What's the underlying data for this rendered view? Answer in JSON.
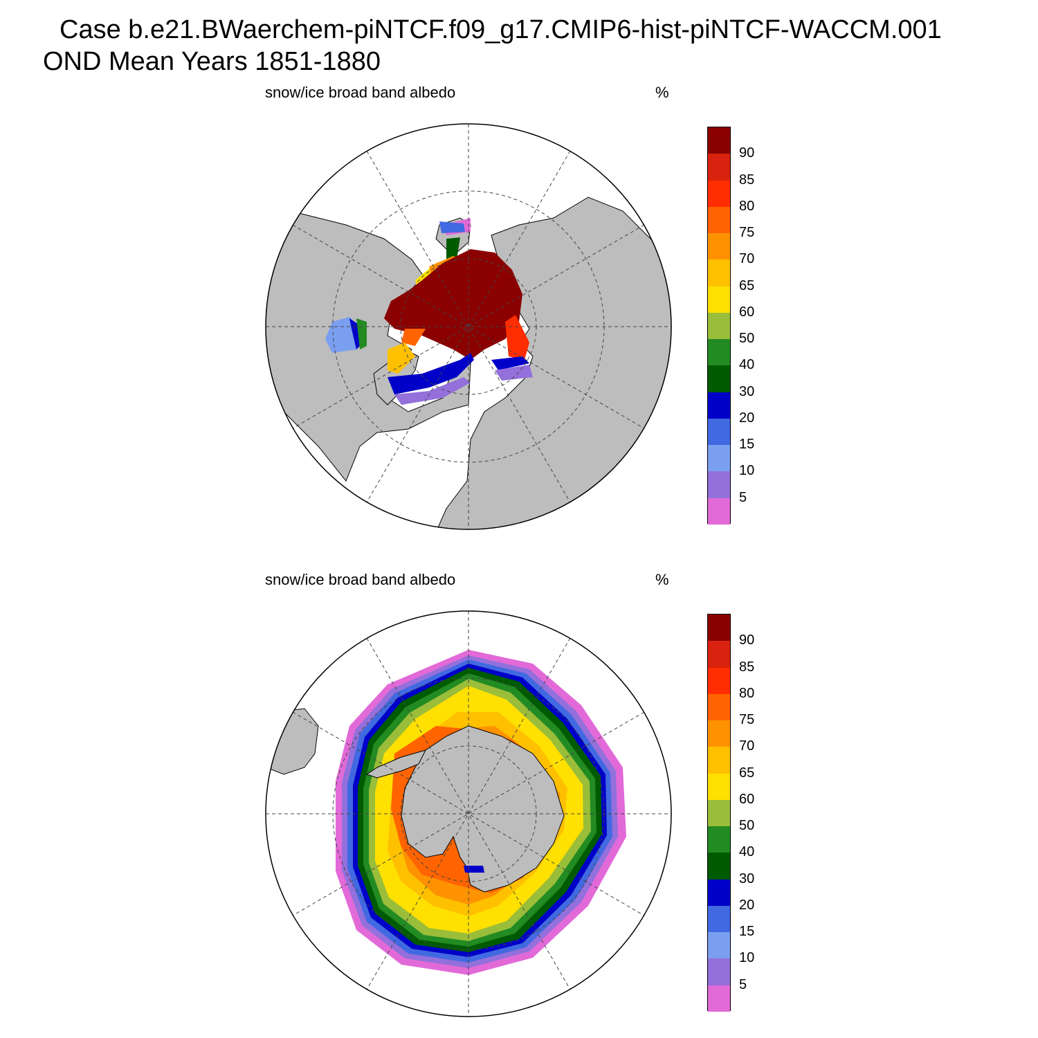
{
  "header": {
    "line1": "Case b.e21.BWaerchem-piNTCF.f09_g17.CMIP6-hist-piNTCF-WACCM.001",
    "line2": "OND Mean   Years 1851-1880"
  },
  "panels": [
    {
      "label": "snow/ice broad band albedo",
      "unit": "%",
      "hemisphere": "north"
    },
    {
      "label": "snow/ice broad band albedo",
      "unit": "%",
      "hemisphere": "south"
    }
  ],
  "colors": {
    "land": "#bdbdbd",
    "ocean": "#ffffff",
    "bands": [
      "#e26ad8",
      "#9370db",
      "#7b9ff0",
      "#4169e1",
      "#0000c8",
      "#005a00",
      "#228b22",
      "#9abd3a",
      "#ffe000",
      "#ffc000",
      "#ff9200",
      "#ff6400",
      "#ff2d00",
      "#d9230f",
      "#8b0000"
    ]
  },
  "colorbar": {
    "labels": [
      "5",
      "10",
      "15",
      "20",
      "30",
      "40",
      "50",
      "60",
      "65",
      "70",
      "75",
      "80",
      "85",
      "90"
    ]
  }
}
